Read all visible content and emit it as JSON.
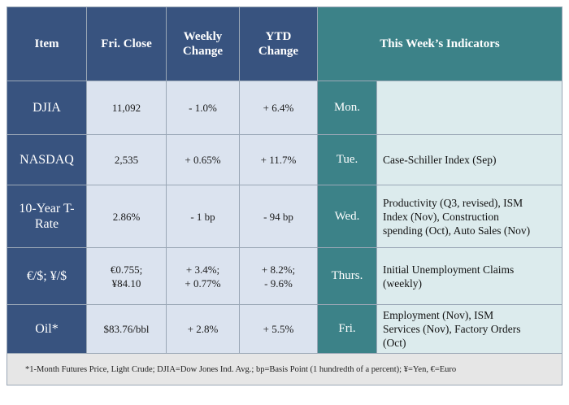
{
  "headers": {
    "item": "Item",
    "close": "Fri. Close",
    "weekly": [
      "Weekly",
      "Change"
    ],
    "ytd": [
      "YTD",
      "Change"
    ],
    "indicators": "This Week’s Indicators"
  },
  "rows": [
    {
      "item": [
        "DJIA"
      ],
      "close": [
        "11,092"
      ],
      "weekly": [
        "- 1.0%"
      ],
      "ytd": [
        "+ 6.4%"
      ],
      "day": "Mon.",
      "indicator": []
    },
    {
      "item": [
        "NASDAQ"
      ],
      "close": [
        "2,535"
      ],
      "weekly": [
        "+ 0.65%"
      ],
      "ytd": [
        "+ 11.7%"
      ],
      "day": "Tue.",
      "indicator": [
        "Case-Schiller Index (Sep)"
      ]
    },
    {
      "item": [
        "10-Year T-",
        "Rate"
      ],
      "close": [
        "2.86%"
      ],
      "weekly": [
        "- 1 bp"
      ],
      "ytd": [
        "- 94 bp"
      ],
      "day": "Wed.",
      "indicator": [
        "Productivity (Q3, revised), ISM",
        "Index (Nov), Construction",
        "spending (Oct), Auto Sales (Nov)"
      ]
    },
    {
      "item": [
        "€/$; ¥/$"
      ],
      "close": [
        "€0.755;",
        "¥84.10"
      ],
      "weekly": [
        "+ 3.4%;",
        "+ 0.77%"
      ],
      "ytd": [
        "+ 8.2%;",
        "- 9.6%"
      ],
      "day": "Thurs.",
      "indicator": [
        "Initial Unemployment Claims",
        "(weekly)"
      ]
    },
    {
      "item": [
        "Oil*"
      ],
      "close": [
        "$83.76/bbl"
      ],
      "weekly": [
        "+ 2.8%"
      ],
      "ytd": [
        "+ 5.5%"
      ],
      "day": "Fri.",
      "indicator": [
        "Employment (Nov), ISM",
        "Services (Nov), Factory Orders",
        "(Oct)"
      ]
    }
  ],
  "footnote": "*1-Month Futures Price, Light Crude; DJIA=Dow Jones Ind. Avg.; bp=Basis Point (1 hundredth of a percent); ¥=Yen, €=Euro",
  "colors": {
    "navy": "#38537f",
    "teal": "#3c8288",
    "value_cell": "#dbe3ef",
    "indicator_cell": "#dcebed",
    "footnote_bg": "#e6e6e6"
  }
}
